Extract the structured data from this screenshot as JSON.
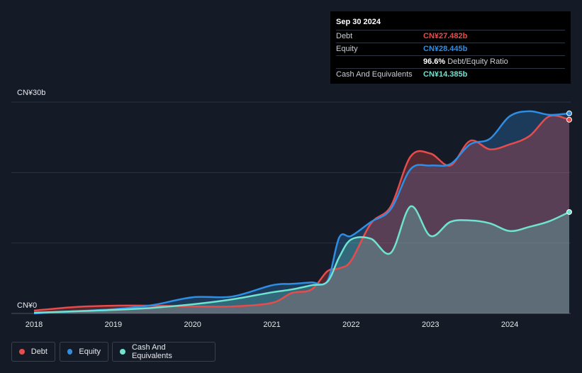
{
  "tooltip": {
    "date": "Sep 30 2024",
    "rows": [
      {
        "label": "Debt",
        "value": "CN¥27.482b",
        "color": "#e64c4c"
      },
      {
        "label": "Equity",
        "value": "CN¥28.445b",
        "color": "#2f8de4"
      },
      {
        "label": "",
        "value": "96.6%",
        "extra": "Debt/Equity Ratio",
        "color": "#ffffff"
      },
      {
        "label": "Cash And Equivalents",
        "value": "CN¥14.385b",
        "color": "#6fe3d0"
      }
    ]
  },
  "legend": [
    {
      "label": "Debt",
      "color": "#e64c4c"
    },
    {
      "label": "Equity",
      "color": "#2f8de4"
    },
    {
      "label": "Cash And Equivalents",
      "color": "#6fe3d0"
    }
  ],
  "chart_data": {
    "type": "area",
    "x_tick_labels": [
      "2018",
      "2019",
      "2020",
      "2021",
      "2022",
      "2023",
      "2024"
    ],
    "y_tick_labels": [
      "CN¥0",
      "CN¥30b"
    ],
    "ylim": [
      0,
      30
    ],
    "xlim": [
      2018.0,
      2024.75
    ],
    "grid": true,
    "legend_position": "bottom-left",
    "series": [
      {
        "name": "Debt",
        "color": "#e64c4c",
        "x": [
          2018.0,
          2018.5,
          2019.0,
          2019.5,
          2020.0,
          2020.5,
          2021.0,
          2021.25,
          2021.5,
          2021.7,
          2021.85,
          2022.0,
          2022.25,
          2022.5,
          2022.75,
          2023.0,
          2023.25,
          2023.5,
          2023.75,
          2024.0,
          2024.25,
          2024.5,
          2024.75
        ],
        "y": [
          0.4,
          0.9,
          1.1,
          1.1,
          1.0,
          1.0,
          1.5,
          2.9,
          3.4,
          6.0,
          6.4,
          7.5,
          12.8,
          15.2,
          22.3,
          22.7,
          21.0,
          24.5,
          23.3,
          24.0,
          25.2,
          28.0,
          27.5
        ]
      },
      {
        "name": "Equity",
        "color": "#2f8de4",
        "x": [
          2018.0,
          2018.5,
          2019.0,
          2019.5,
          2020.0,
          2020.5,
          2021.0,
          2021.25,
          2021.5,
          2021.7,
          2021.85,
          2022.0,
          2022.25,
          2022.5,
          2022.75,
          2023.0,
          2023.25,
          2023.5,
          2023.75,
          2024.0,
          2024.25,
          2024.5,
          2024.75
        ],
        "y": [
          0.0,
          0.3,
          0.6,
          1.2,
          2.3,
          2.4,
          4.0,
          4.2,
          4.4,
          4.6,
          10.8,
          11.0,
          13.0,
          14.8,
          20.5,
          21.0,
          21.2,
          24.0,
          24.8,
          28.0,
          28.7,
          28.2,
          28.4
        ]
      },
      {
        "name": "Cash And Equivalents",
        "color": "#6fe3d0",
        "x": [
          2018.0,
          2018.5,
          2019.0,
          2019.5,
          2020.0,
          2020.5,
          2021.0,
          2021.25,
          2021.5,
          2021.7,
          2021.85,
          2022.0,
          2022.25,
          2022.5,
          2022.75,
          2023.0,
          2023.25,
          2023.5,
          2023.75,
          2024.0,
          2024.25,
          2024.5,
          2024.75
        ],
        "y": [
          0.1,
          0.3,
          0.5,
          0.8,
          1.3,
          2.0,
          3.0,
          3.4,
          4.0,
          4.5,
          8.0,
          10.5,
          10.6,
          8.6,
          15.2,
          11.0,
          13.0,
          13.2,
          12.8,
          11.7,
          12.3,
          13.1,
          14.4
        ]
      }
    ]
  }
}
